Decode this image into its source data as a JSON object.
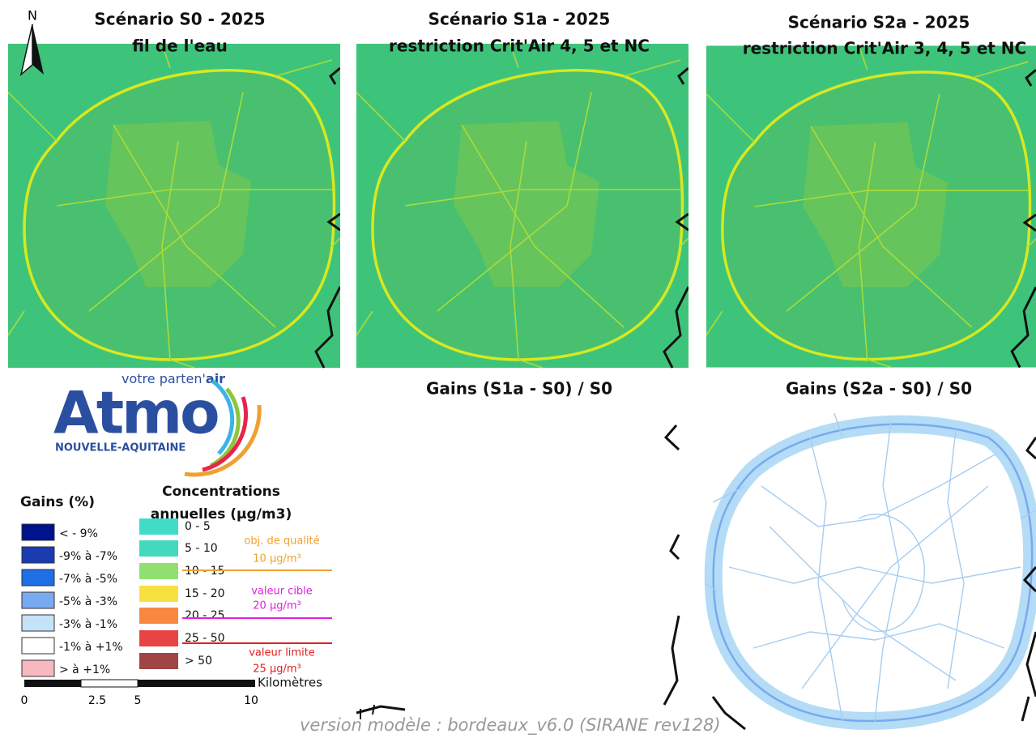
{
  "north": "N",
  "panels": [
    {
      "title": "Scénario S0 - 2025",
      "subtitle": "fil de l'eau"
    },
    {
      "title": "Scénario S1a - 2025",
      "subtitle": "restriction Crit'Air 4, 5 et NC"
    },
    {
      "title": "Scénario S2a - 2025",
      "subtitle": "restriction Crit'Air 3, 4, 5 et NC"
    }
  ],
  "gains_panels": [
    {
      "title": "Gains (S1a - S0) / S0"
    },
    {
      "title": "Gains (S2a - S0) / S0"
    }
  ],
  "logo": {
    "tagline_prefix": "votre parten'",
    "tagline_suffix": "air",
    "name": "Atmo",
    "region": "NOUVELLE-AQUITAINE"
  },
  "gains_legend": {
    "title": "Gains (%)",
    "items": [
      {
        "label": "< - 9%",
        "color": "#00128c"
      },
      {
        "label": "-9% à -7%",
        "color": "#1a3cb0"
      },
      {
        "label": "-7% à -5%",
        "color": "#1e6ee6"
      },
      {
        "label": "-5% à -3%",
        "color": "#78aaf0"
      },
      {
        "label": "-3% à -1%",
        "color": "#c4e2f8"
      },
      {
        "label": "-1% à +1%",
        "color": "#ffffff"
      },
      {
        "label": "> à +1%",
        "color": "#f8b8c0"
      }
    ]
  },
  "concentration_legend": {
    "title_line1": "Concentrations",
    "title_line2": "annuelles (µg/m3)",
    "items": [
      {
        "label": "0 - 5",
        "color": "#40dcc8"
      },
      {
        "label": "5 - 10",
        "color": "#44d8bc"
      },
      {
        "label": "10 - 15",
        "color": "#90e070"
      },
      {
        "label": "15 - 20",
        "color": "#f8e040"
      },
      {
        "label": "20 - 25",
        "color": "#f88840"
      },
      {
        "label": "25 - 50",
        "color": "#e84444"
      },
      {
        "label": "> 50",
        "color": "#a04444"
      }
    ]
  },
  "thresholds": [
    {
      "name": "obj. de qualité",
      "value": "10 µg/m³",
      "color": "#f0a030"
    },
    {
      "name": "valeur cible",
      "value": "20 µg/m³",
      "color": "#e020e0"
    },
    {
      "name": "valeur limite",
      "value": "25 µg/m³",
      "color": "#e02020"
    }
  ],
  "scale_bar": {
    "unit": "Kilomètres",
    "labels": [
      "0",
      "2.5",
      "5",
      "10"
    ]
  },
  "footer": "version modèle : bordeaux_v6.0 (SIRANE rev128)"
}
